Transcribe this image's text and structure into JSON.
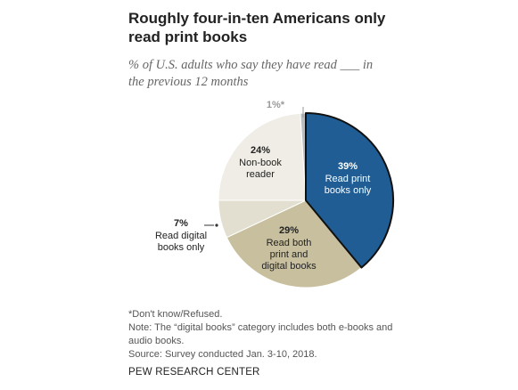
{
  "header": {
    "title_line1": "Roughly four-in-ten Americans only",
    "title_line2": "read print books",
    "subtitle_line1": "% of U.S. adults who say they have read ___ in",
    "subtitle_line2": "the previous 12 months"
  },
  "chart_data": {
    "type": "pie",
    "title": "Roughly four-in-ten Americans only read print books",
    "subtitle": "% of U.S. adults who say they have read ___ in the previous 12 months",
    "slices": [
      {
        "name": "Read print books only",
        "value": 39,
        "label": "39%",
        "label_lines": [
          "Read print",
          "books only"
        ],
        "color": "#1f5d94",
        "highlighted": true
      },
      {
        "name": "Read both print and digital books",
        "value": 29,
        "label": "29%",
        "label_lines": [
          "Read both",
          "print and",
          "digital books"
        ],
        "color": "#c8bf9e"
      },
      {
        "name": "Read digital books only",
        "value": 7,
        "label": "7%",
        "label_lines": [
          "Read digital",
          "books only"
        ],
        "color": "#e3dfd0"
      },
      {
        "name": "Non-book reader",
        "value": 24,
        "label": "24%",
        "label_lines": [
          "Non-book",
          "reader"
        ],
        "color": "#efede5"
      },
      {
        "name": "Don't know/Refused",
        "value": 1,
        "label": "1%*",
        "label_lines": [],
        "color": "#b9bcc0"
      }
    ]
  },
  "notes": {
    "dk": "*Don't know/Refused.",
    "note_line1": "Note: The “digital books” category includes both e-books and",
    "note_line2": "audio books.",
    "source": "Source: Survey conducted Jan. 3-10, 2018.",
    "org": "PEW RESEARCH CENTER"
  }
}
